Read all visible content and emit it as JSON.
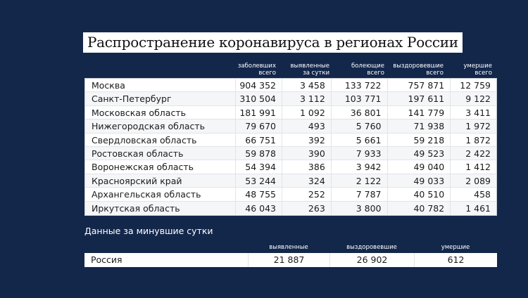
{
  "title": "Распространение коронавируса в регионах России",
  "regions_table": {
    "headers": [
      "заболевших всего",
      "выявленные за сутки",
      "болеющие всего",
      "выздоровевшие всего",
      "умершие всего"
    ],
    "header_lines": [
      [
        "заболевших",
        "всего"
      ],
      [
        "выявленные",
        "за сутки"
      ],
      [
        "болеющие",
        "всего"
      ],
      [
        "выздоровевшие",
        "всего"
      ],
      [
        "умершие",
        "всего"
      ]
    ],
    "rows": [
      [
        "Москва",
        "904 352",
        "3 458",
        "133 722",
        "757 871",
        "12 759"
      ],
      [
        "Санкт-Петербург",
        "310 504",
        "3 112",
        "103 771",
        "197 611",
        "9 122"
      ],
      [
        "Московская область",
        "181 991",
        "1 092",
        "36 801",
        "141 779",
        "3 411"
      ],
      [
        "Нижегородская область",
        "79 670",
        "493",
        "5 760",
        "71 938",
        "1 972"
      ],
      [
        "Свердловская область",
        "66 751",
        "392",
        "5 661",
        "59 218",
        "1 872"
      ],
      [
        "Ростовская область",
        "59 878",
        "390",
        "7 933",
        "49 523",
        "2 422"
      ],
      [
        "Воронежская область",
        "54 394",
        "386",
        "3 942",
        "49 040",
        "1 412"
      ],
      [
        "Красноярский край",
        "53 244",
        "324",
        "2 122",
        "49 033",
        "2 089"
      ],
      [
        "Архангельская область",
        "48 755",
        "252",
        "7 787",
        "40 510",
        "458"
      ],
      [
        "Иркутская область",
        "46 043",
        "263",
        "3 800",
        "40 782",
        "1 461"
      ]
    ]
  },
  "daily": {
    "heading": "Данные за минувшие сутки",
    "headers": [
      "выявленные",
      "выздоровевшие",
      "умершие"
    ],
    "row": [
      "Россия",
      "21 887",
      "26 902",
      "612"
    ]
  },
  "colors": {
    "background": "#13274b",
    "table": "#ffffff"
  }
}
